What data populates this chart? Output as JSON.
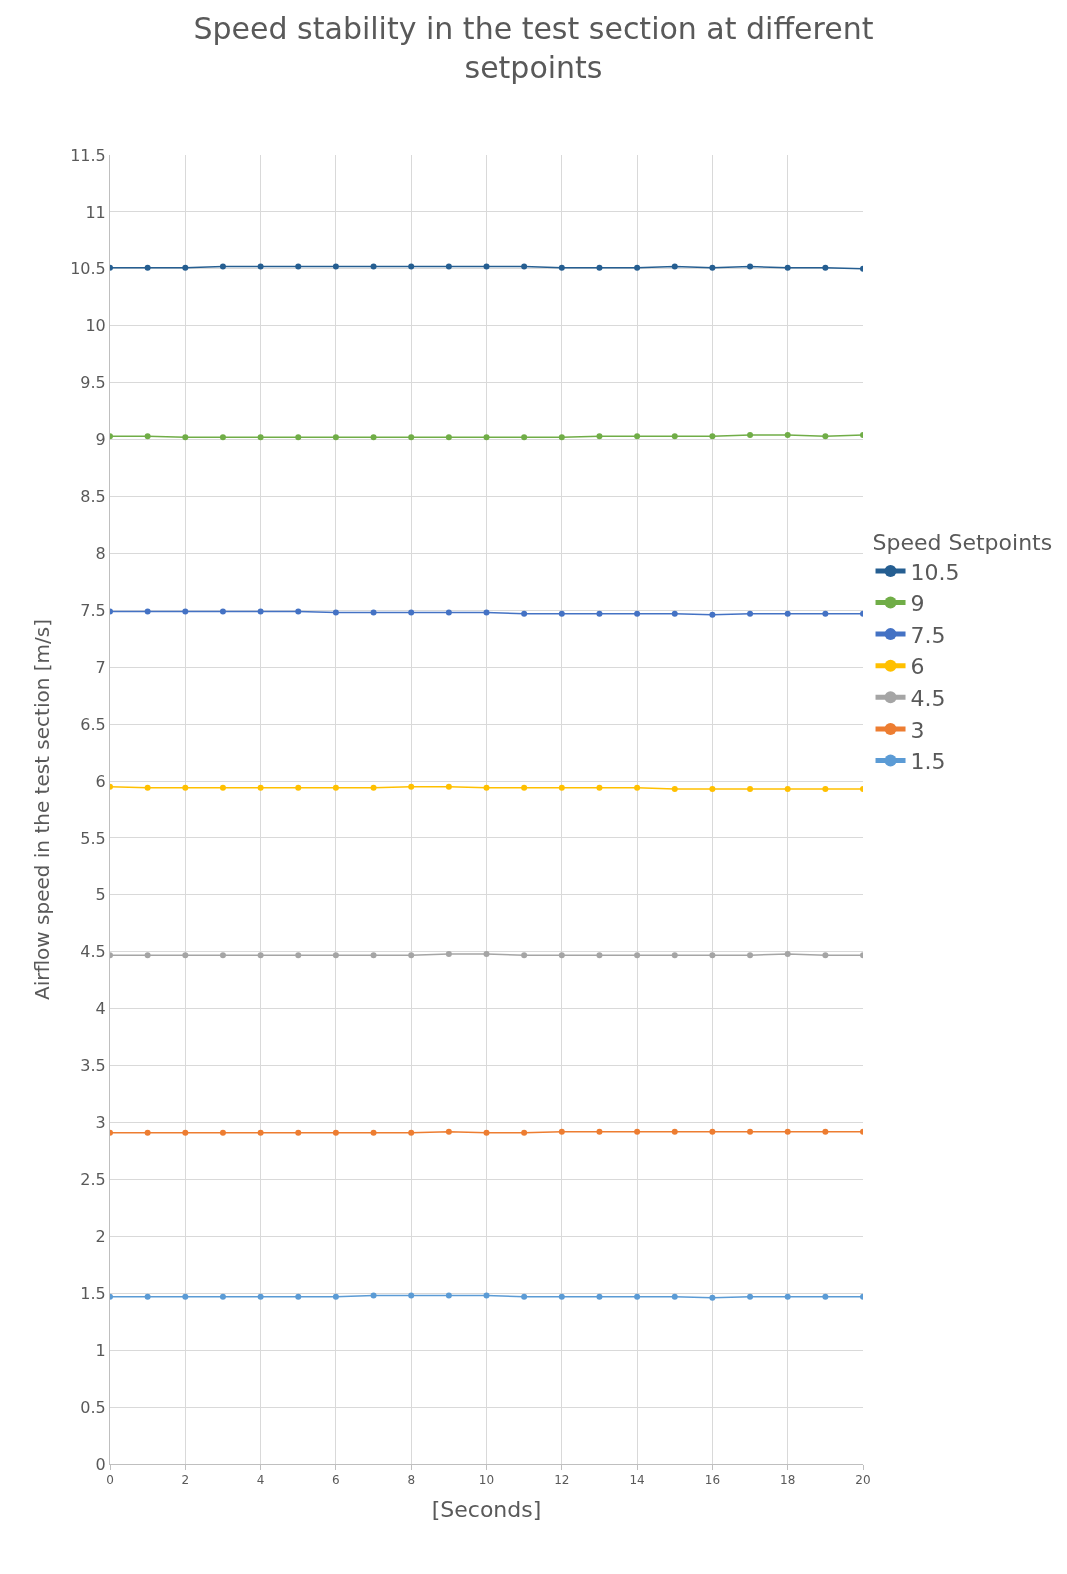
{
  "chart_data": {
    "type": "line",
    "title": "Speed stability in the test section at different setpoints",
    "xlabel": "[Seconds]",
    "ylabel": "Airflow speed in the test section [m/s]",
    "legend_title": "Speed Setpoints",
    "x": [
      0,
      1,
      2,
      3,
      4,
      5,
      6,
      7,
      8,
      9,
      10,
      11,
      12,
      13,
      14,
      15,
      16,
      17,
      18,
      19,
      20
    ],
    "series": [
      {
        "name": "10.5",
        "color": "#255e91",
        "values": [
          10.51,
          10.51,
          10.51,
          10.52,
          10.52,
          10.52,
          10.52,
          10.52,
          10.52,
          10.52,
          10.52,
          10.52,
          10.51,
          10.51,
          10.51,
          10.52,
          10.51,
          10.52,
          10.51,
          10.51,
          10.5
        ]
      },
      {
        "name": "9",
        "color": "#70ad47",
        "values": [
          9.03,
          9.03,
          9.02,
          9.02,
          9.02,
          9.02,
          9.02,
          9.02,
          9.02,
          9.02,
          9.02,
          9.02,
          9.02,
          9.03,
          9.03,
          9.03,
          9.03,
          9.04,
          9.04,
          9.03,
          9.04
        ]
      },
      {
        "name": "7.5",
        "color": "#4472c4",
        "values": [
          7.49,
          7.49,
          7.49,
          7.49,
          7.49,
          7.49,
          7.48,
          7.48,
          7.48,
          7.48,
          7.48,
          7.47,
          7.47,
          7.47,
          7.47,
          7.47,
          7.46,
          7.47,
          7.47,
          7.47,
          7.47
        ]
      },
      {
        "name": "6",
        "color": "#ffc000",
        "values": [
          5.95,
          5.94,
          5.94,
          5.94,
          5.94,
          5.94,
          5.94,
          5.94,
          5.95,
          5.95,
          5.94,
          5.94,
          5.94,
          5.94,
          5.94,
          5.93,
          5.93,
          5.93,
          5.93,
          5.93,
          5.93
        ]
      },
      {
        "name": "4.5",
        "color": "#a5a5a5",
        "values": [
          4.47,
          4.47,
          4.47,
          4.47,
          4.47,
          4.47,
          4.47,
          4.47,
          4.47,
          4.48,
          4.48,
          4.47,
          4.47,
          4.47,
          4.47,
          4.47,
          4.47,
          4.47,
          4.48,
          4.47,
          4.47
        ]
      },
      {
        "name": "3",
        "color": "#ed7d31",
        "values": [
          2.91,
          2.91,
          2.91,
          2.91,
          2.91,
          2.91,
          2.91,
          2.91,
          2.91,
          2.92,
          2.91,
          2.91,
          2.92,
          2.92,
          2.92,
          2.92,
          2.92,
          2.92,
          2.92,
          2.92,
          2.92
        ]
      },
      {
        "name": "1.5",
        "color": "#5b9bd5",
        "values": [
          1.47,
          1.47,
          1.47,
          1.47,
          1.47,
          1.47,
          1.47,
          1.48,
          1.48,
          1.48,
          1.48,
          1.47,
          1.47,
          1.47,
          1.47,
          1.47,
          1.46,
          1.47,
          1.47,
          1.47,
          1.47
        ]
      }
    ],
    "xlim": [
      0,
      20
    ],
    "xticks": [
      0,
      2,
      4,
      6,
      8,
      10,
      12,
      14,
      16,
      18,
      20
    ],
    "ylim": [
      0,
      11.5
    ],
    "yticks": [
      0,
      0.5,
      1,
      1.5,
      2,
      2.5,
      3,
      3.5,
      4,
      4.5,
      5,
      5.5,
      6,
      6.5,
      7,
      7.5,
      8,
      8.5,
      9,
      9.5,
      10,
      10.5,
      11,
      11.5
    ],
    "grid": true,
    "legend": "right",
    "marker": "circle",
    "line_style": "solid"
  }
}
